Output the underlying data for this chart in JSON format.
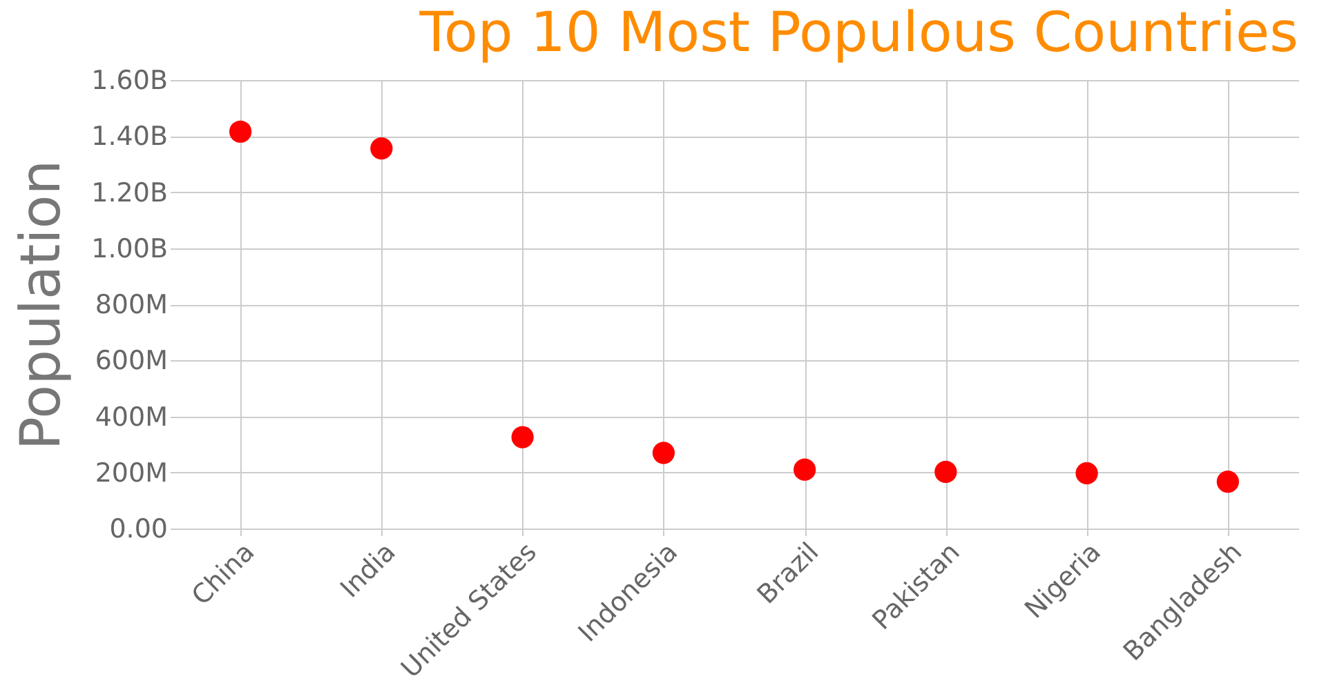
{
  "chart_data": {
    "type": "scatter",
    "title": "Top 10 Most Populous Countries",
    "ylabel": "Population",
    "categories": [
      "China",
      "India",
      "United States",
      "Indonesia",
      "Brazil",
      "Pakistan",
      "Nigeria",
      "Bangladesh"
    ],
    "series": [
      {
        "color": "#ff0000",
        "values": [
          1416000000,
          1356000000,
          326000000,
          270000000,
          210000000,
          202000000,
          197000000,
          167000000
        ]
      }
    ],
    "ylim": [
      0,
      1600000000
    ],
    "yticks": [
      {
        "value": 0,
        "label": "0.00"
      },
      {
        "value": 200000000,
        "label": "200M"
      },
      {
        "value": 400000000,
        "label": "400M"
      },
      {
        "value": 600000000,
        "label": "600M"
      },
      {
        "value": 800000000,
        "label": "800M"
      },
      {
        "value": 1000000000,
        "label": "1.00B"
      },
      {
        "value": 1200000000,
        "label": "1.20B"
      },
      {
        "value": 1400000000,
        "label": "1.40B"
      },
      {
        "value": 1600000000,
        "label": "1.60B"
      }
    ],
    "grid": true,
    "marker": "circle",
    "legend": false
  }
}
